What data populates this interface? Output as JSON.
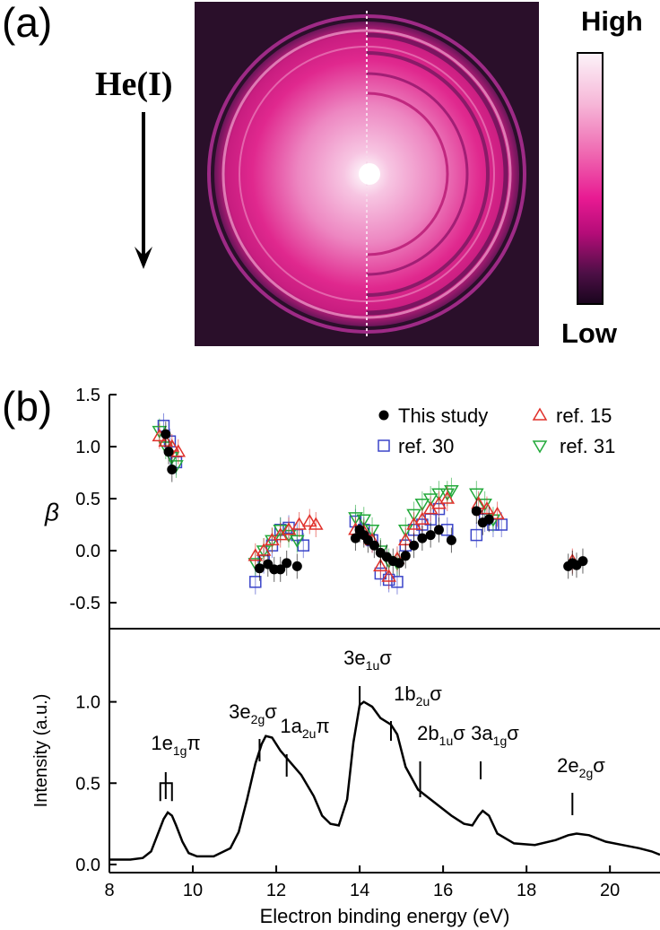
{
  "panel_a": {
    "label": "(a)",
    "source_label": "He(I)",
    "colorbar": {
      "high_label": "High",
      "low_label": "Low"
    }
  },
  "panel_b": {
    "label": "(b)"
  },
  "colors": {
    "this_study": "#000000",
    "ref15": "#e0302a",
    "ref30": "#3b45c9",
    "ref31": "#22a93a",
    "vmi_mid": "#e0288e"
  },
  "chart_data": [
    {
      "type": "scatter",
      "panel": "top",
      "ylabel": "β",
      "ylim": [
        -0.75,
        1.5
      ],
      "yticks": [
        -0.5,
        0.0,
        0.5,
        1.0,
        1.5
      ],
      "xlim": [
        8,
        21.2
      ],
      "legend": {
        "placement": "top-right"
      },
      "series": [
        {
          "name": "This study",
          "marker": "filled-circle",
          "color": "#000000",
          "x": [
            9.35,
            9.42,
            9.5,
            11.6,
            11.8,
            11.95,
            12.1,
            12.25,
            12.5,
            13.9,
            14.0,
            14.1,
            14.2,
            14.35,
            14.5,
            14.65,
            14.8,
            14.95,
            15.1,
            15.3,
            15.5,
            15.7,
            15.9,
            16.2,
            16.8,
            16.95,
            17.1,
            19.0,
            19.1,
            19.2,
            19.35
          ],
          "y": [
            1.12,
            0.95,
            0.78,
            -0.17,
            -0.13,
            -0.18,
            -0.18,
            -0.12,
            -0.15,
            0.12,
            0.2,
            0.15,
            0.1,
            0.05,
            -0.02,
            -0.06,
            -0.1,
            -0.12,
            -0.05,
            0.05,
            0.12,
            0.15,
            0.2,
            0.1,
            0.38,
            0.27,
            0.3,
            -0.15,
            -0.12,
            -0.14,
            -0.1
          ]
        },
        {
          "name": "ref. 15",
          "marker": "triangle-up",
          "color": "#e0302a",
          "x": [
            9.2,
            9.35,
            9.5,
            9.65,
            11.5,
            11.7,
            11.9,
            12.1,
            12.3,
            12.55,
            12.8,
            12.95,
            13.9,
            14.1,
            14.3,
            14.5,
            14.7,
            14.9,
            15.1,
            15.3,
            15.5,
            15.7,
            15.9,
            16.1,
            16.85,
            17.05,
            17.3,
            19.1
          ],
          "y": [
            1.1,
            1.05,
            1.0,
            0.95,
            -0.05,
            0.0,
            0.1,
            0.15,
            0.2,
            0.25,
            0.28,
            0.25,
            0.2,
            0.18,
            0.1,
            -0.15,
            -0.25,
            -0.08,
            0.1,
            0.25,
            0.3,
            0.4,
            0.45,
            0.5,
            0.45,
            0.4,
            0.35,
            -0.1
          ]
        },
        {
          "name": "ref. 30",
          "marker": "open-square",
          "color": "#3b45c9",
          "x": [
            9.3,
            9.45,
            9.6,
            11.5,
            11.7,
            11.9,
            12.1,
            12.3,
            12.5,
            12.65,
            13.9,
            14.1,
            14.3,
            14.5,
            14.7,
            14.9,
            15.1,
            15.3,
            15.5,
            15.7,
            15.9,
            16.1,
            16.8,
            17.0,
            17.2,
            17.4
          ],
          "y": [
            1.2,
            1.05,
            0.85,
            -0.3,
            -0.1,
            0.05,
            0.2,
            0.22,
            0.15,
            0.05,
            0.28,
            0.2,
            0.1,
            -0.22,
            -0.28,
            -0.3,
            0.05,
            0.2,
            0.25,
            0.3,
            0.4,
            0.2,
            0.15,
            0.3,
            0.25,
            0.25
          ]
        },
        {
          "name": "ref. 31",
          "marker": "triangle-down",
          "color": "#22a93a",
          "x": [
            9.2,
            9.35,
            9.5,
            9.6,
            11.5,
            11.7,
            11.9,
            12.1,
            12.3,
            12.5,
            13.9,
            14.1,
            14.3,
            14.5,
            14.7,
            14.9,
            15.1,
            15.3,
            15.5,
            15.7,
            15.9,
            16.1,
            16.2,
            16.8,
            17.0,
            17.2
          ],
          "y": [
            1.15,
            1.0,
            0.9,
            0.82,
            -0.12,
            0.0,
            0.1,
            0.2,
            0.15,
            0.1,
            0.32,
            0.3,
            0.2,
            0.0,
            -0.1,
            -0.12,
            0.2,
            0.35,
            0.45,
            0.5,
            0.55,
            0.55,
            0.58,
            0.55,
            0.45,
            0.3
          ]
        }
      ]
    },
    {
      "type": "line",
      "panel": "bottom",
      "xlabel": "Electron binding energy (eV)",
      "ylabel": "Intensity (a.u.)",
      "xlim": [
        8,
        21.2
      ],
      "ylim": [
        -0.05,
        1.45
      ],
      "xticks": [
        8,
        10,
        12,
        14,
        16,
        18,
        20
      ],
      "yticks": [
        0.0,
        0.5,
        1.0
      ],
      "series": [
        {
          "color": "#000000",
          "x": [
            8.0,
            8.5,
            8.8,
            9.0,
            9.15,
            9.3,
            9.4,
            9.5,
            9.6,
            9.75,
            9.9,
            10.1,
            10.5,
            10.9,
            11.1,
            11.3,
            11.5,
            11.65,
            11.75,
            11.9,
            12.1,
            12.3,
            12.6,
            12.9,
            13.1,
            13.3,
            13.5,
            13.7,
            13.85,
            14.0,
            14.1,
            14.3,
            14.5,
            14.75,
            14.9,
            15.1,
            15.4,
            15.8,
            16.2,
            16.5,
            16.7,
            16.85,
            16.95,
            17.1,
            17.3,
            17.7,
            18.2,
            18.7,
            19.0,
            19.2,
            19.5,
            19.9,
            20.3,
            20.7,
            21.0,
            21.2
          ],
          "y": [
            0.03,
            0.03,
            0.04,
            0.08,
            0.18,
            0.28,
            0.32,
            0.3,
            0.24,
            0.14,
            0.07,
            0.05,
            0.05,
            0.1,
            0.2,
            0.4,
            0.62,
            0.74,
            0.79,
            0.78,
            0.7,
            0.64,
            0.55,
            0.42,
            0.3,
            0.25,
            0.24,
            0.4,
            0.75,
            0.98,
            1.0,
            0.97,
            0.9,
            0.86,
            0.8,
            0.6,
            0.46,
            0.38,
            0.3,
            0.25,
            0.24,
            0.3,
            0.33,
            0.3,
            0.19,
            0.13,
            0.12,
            0.15,
            0.18,
            0.19,
            0.18,
            0.14,
            0.12,
            0.1,
            0.08,
            0.06
          ]
        }
      ],
      "annotations": [
        {
          "label": "1e",
          "sub": "1g",
          "tail": "π",
          "x": 9.35
        },
        {
          "label": "3e",
          "sub": "2g",
          "tail": "σ",
          "x": 11.6
        },
        {
          "label": "1a",
          "sub": "2u",
          "tail": "π",
          "x": 12.25
        },
        {
          "label": "3e",
          "sub": "1u",
          "tail": "σ",
          "x": 14.0
        },
        {
          "label": "1b",
          "sub": "2u",
          "tail": "σ",
          "x": 14.75
        },
        {
          "label": "2b",
          "sub": "1u",
          "tail": "σ",
          "x": 15.45
        },
        {
          "label": "3a",
          "sub": "1g",
          "tail": "σ",
          "x": 16.9
        },
        {
          "label": "2e",
          "sub": "2g",
          "tail": "σ",
          "x": 19.1
        }
      ]
    }
  ]
}
